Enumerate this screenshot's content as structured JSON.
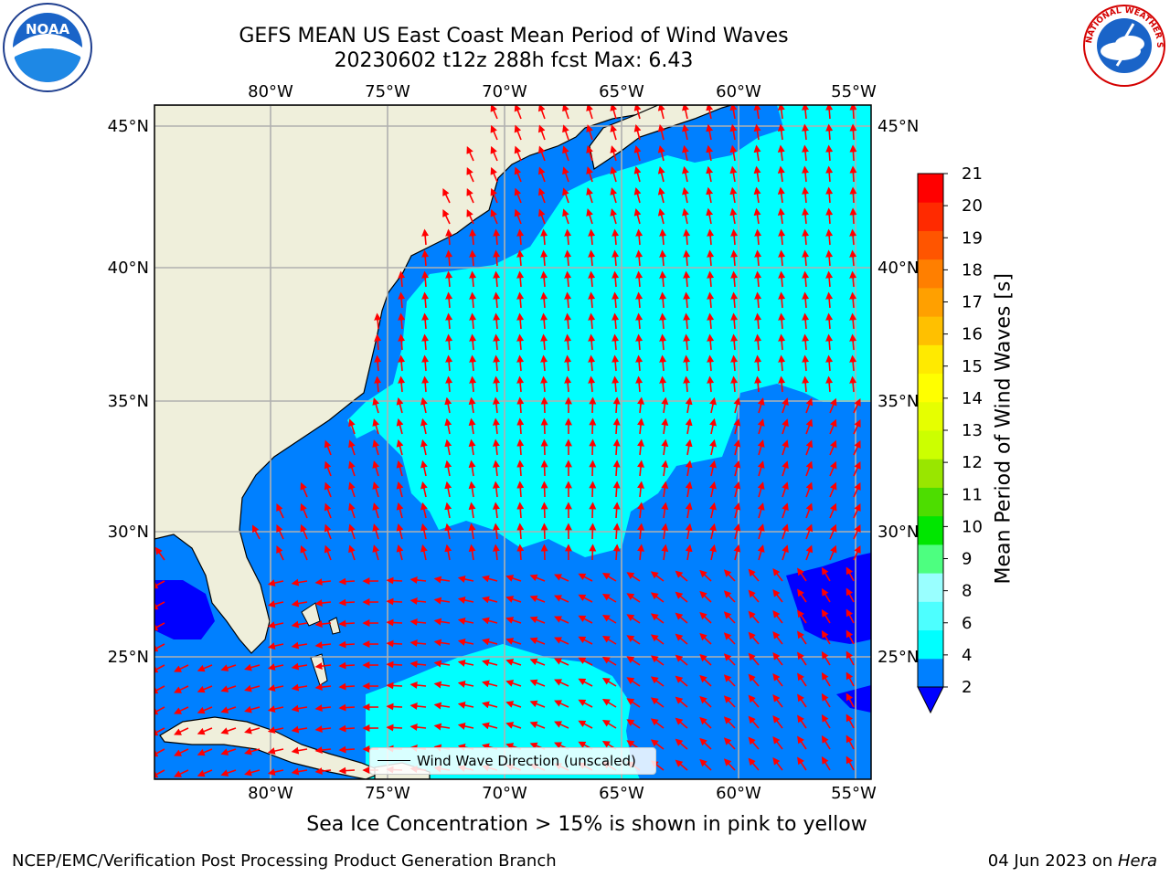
{
  "header": {
    "title_line1": "GEFS MEAN US East Coast Mean Period of Wind Waves",
    "title_line2": "20230602 t12z 288h fcst   Max: 6.43"
  },
  "logos": {
    "left": {
      "name": "noaa-logo",
      "text": "NOAA"
    },
    "right": {
      "name": "nws-logo",
      "text": "NATIONAL WEATHER SERVICE"
    }
  },
  "map": {
    "lon_labels_top": [
      "80°W",
      "75°W",
      "70°W",
      "65°W",
      "60°W",
      "55°W"
    ],
    "lon_labels_bottom": [
      "80°W",
      "75°W",
      "70°W",
      "65°W",
      "60°W",
      "55°W"
    ],
    "lat_labels_left": [
      "45°N",
      "40°N",
      "35°N",
      "30°N",
      "25°N"
    ],
    "lat_labels_right": [
      "45°N",
      "40°N",
      "35°N",
      "30°N",
      "25°N"
    ],
    "extent": {
      "lon_min": -85,
      "lon_max": -54.3,
      "lat_min": 20.5,
      "lat_max": 46
    },
    "legend_label": "Wind Wave Direction (unscaled)",
    "colors": {
      "land": "#efefdb",
      "band_2_4": "#0080ff",
      "band_4_6": "#00ffff",
      "below_2": "#0000ff",
      "grid": "#b0b0b0",
      "arrows": "#ff0000"
    }
  },
  "colorbar": {
    "label": "Mean Period of Wind Waves [s]",
    "ticks": [
      "21",
      "20",
      "19",
      "18",
      "17",
      "16",
      "15",
      "14",
      "13",
      "12",
      "11",
      "10",
      "9",
      "8",
      "6",
      "4",
      "2"
    ],
    "colors": [
      "#0080ff",
      "#00ffff",
      "#4dffff",
      "#99ffff",
      "#4dff80",
      "#00e600",
      "#4ddd00",
      "#99e600",
      "#ccff00",
      "#e6ff00",
      "#ffff00",
      "#ffea00",
      "#ffc000",
      "#ffa000",
      "#ff7f00",
      "#ff5500",
      "#ff2a00",
      "#ff0000"
    ],
    "under_color": "#0000ff"
  },
  "footer": {
    "sea_ice_note": "Sea Ice Concentration > 15% is shown in pink to yellow",
    "credit": "NCEP/EMC/Verification Post Processing Product Generation Branch",
    "date_prefix": "04 Jun 2023 on ",
    "date_machine": "Hera"
  }
}
